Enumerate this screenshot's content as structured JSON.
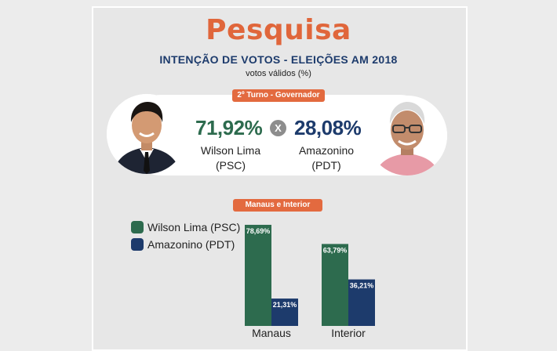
{
  "header": {
    "title": "Pesquisa",
    "subtitle": "INTENÇÃO DE VOTOS - ELEIÇÕES AM 2018",
    "unit": "votos válidos (%)"
  },
  "colors": {
    "accent": "#e36a3f",
    "wilson": "#2d6b4e",
    "amazonino": "#1d3b6c"
  },
  "runoff": {
    "label": "2º Turno - Governador",
    "vs": "X",
    "candidates": [
      {
        "pct": "71,92%",
        "name": "Wilson Lima",
        "party": "(PSC)"
      },
      {
        "pct": "28,08%",
        "name": "Amazonino",
        "party": "(PDT)"
      }
    ]
  },
  "chart_data": {
    "type": "bar",
    "title": "Manaus e Interior",
    "categories": [
      "Manaus",
      "Interior"
    ],
    "series": [
      {
        "name": "Wilson Lima (PSC)",
        "values": [
          78.69,
          63.79
        ],
        "labels": [
          "78,69%",
          "63,79%"
        ],
        "color": "#2d6b4e"
      },
      {
        "name": "Amazonino (PDT)",
        "values": [
          21.31,
          36.21
        ],
        "labels": [
          "21,31%",
          "36,21%"
        ],
        "color": "#1d3b6c"
      }
    ],
    "ylim": [
      0,
      100
    ],
    "grid": false,
    "legend": "top-left"
  }
}
